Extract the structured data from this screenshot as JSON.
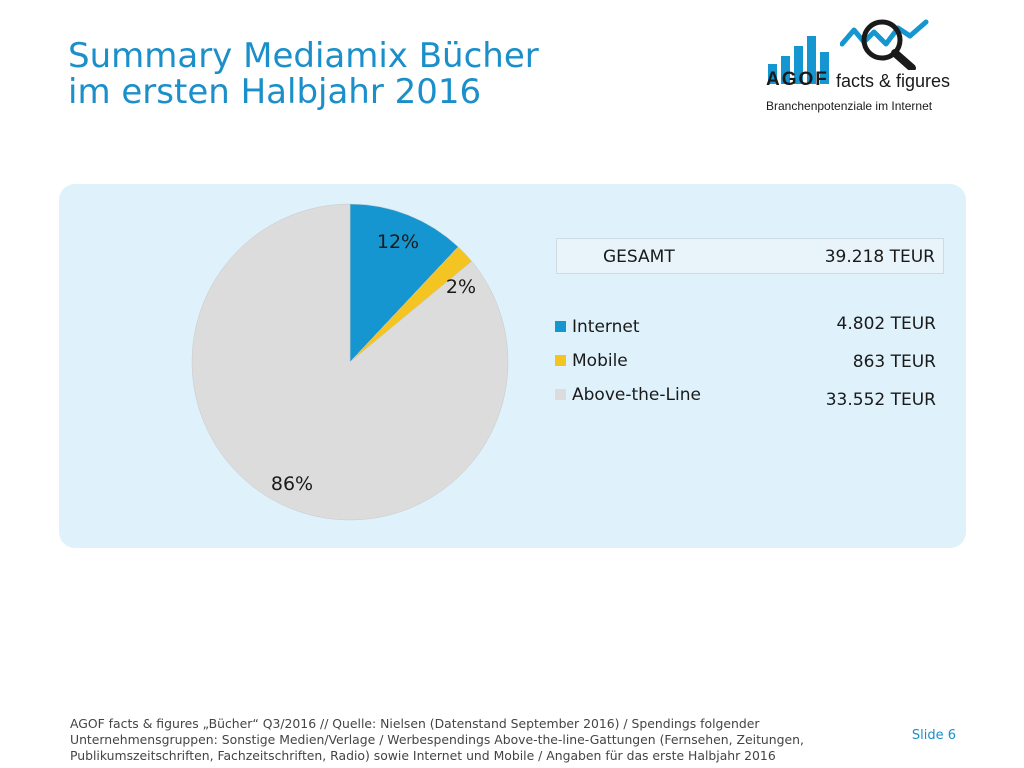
{
  "title": {
    "line1": "Summary Mediamix Bücher",
    "line2": "im ersten Halbjahr 2016"
  },
  "logo": {
    "brand": "AGOF",
    "tagline": "facts & figures",
    "subtitle": "Branchenpotenziale im Internet"
  },
  "total": {
    "label": "GESAMT",
    "value": "39.218 TEUR"
  },
  "colors": {
    "accent": "#1a8fc9",
    "internet": "#1596d1",
    "mobile": "#f3c422",
    "above_the_line": "#dcdcdc",
    "panel": "#dff1fb"
  },
  "chart_data": {
    "type": "pie",
    "categories": [
      "Internet",
      "Mobile",
      "Above-the-Line"
    ],
    "values": [
      12,
      2,
      86
    ],
    "labels": [
      "12%",
      "2%",
      "86%"
    ],
    "amounts": [
      "4.802 TEUR",
      "863 TEUR",
      "33.552 TEUR"
    ],
    "colors": [
      "#1596d1",
      "#f3c422",
      "#dcdcdc"
    ],
    "legend": "right"
  },
  "footer": {
    "source": "AGOF facts & figures „Bücher“ Q3/2016 // Quelle: Nielsen (Datenstand September 2016) / Spendings folgender Unternehmensgruppen: Sonstige Medien/Verlage / Werbespendings Above-the-line-Gattungen (Fernsehen, Zeitungen, Publikumszeitschriften, Fachzeitschriften, Radio) sowie Internet und Mobile / Angaben für das erste Halbjahr 2016",
    "slide": "Slide 6"
  }
}
